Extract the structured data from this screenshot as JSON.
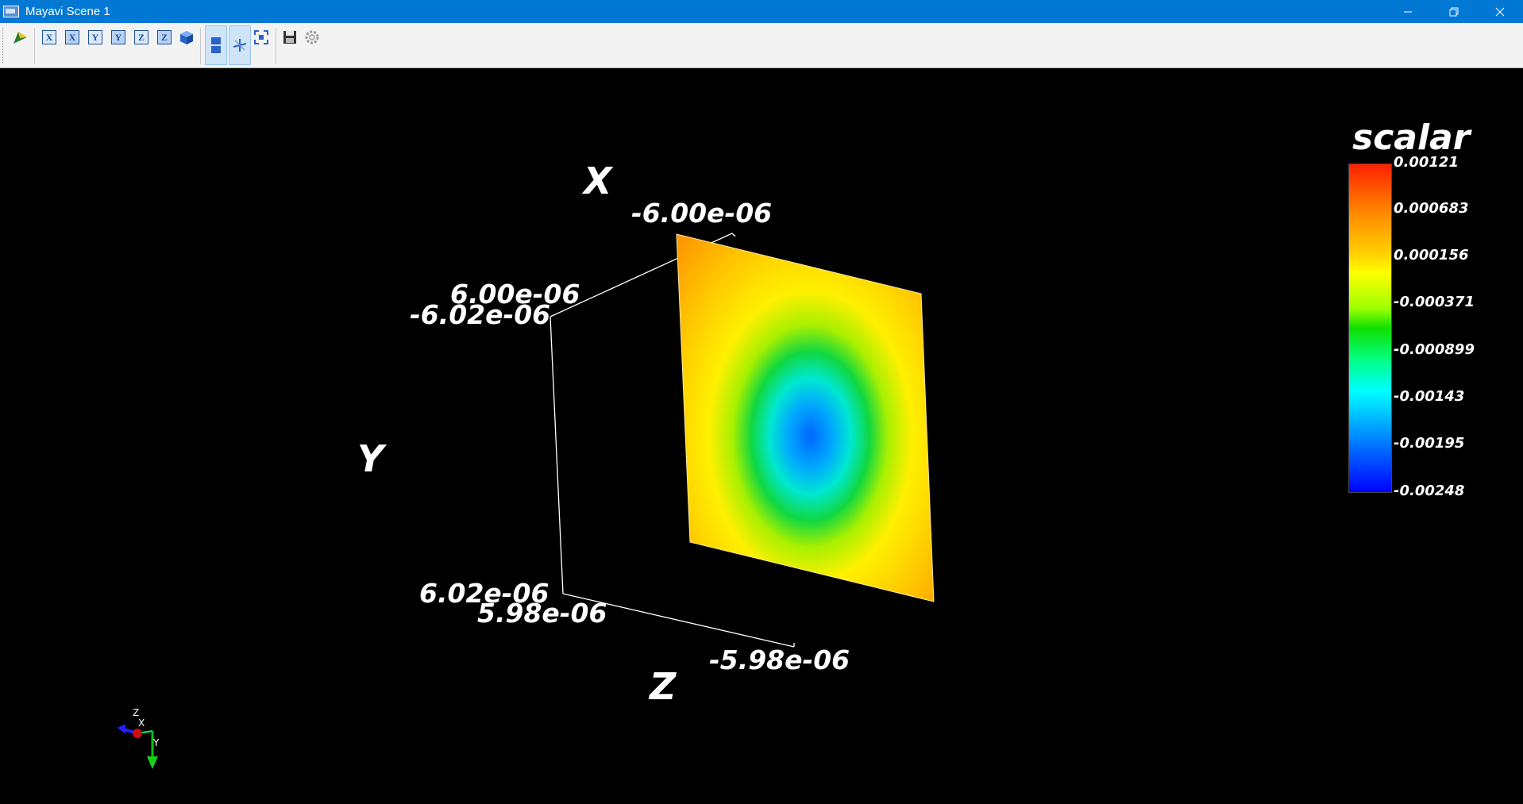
{
  "window": {
    "title": "Mayavi Scene 1",
    "controls": [
      "minimize",
      "restore",
      "close"
    ]
  },
  "toolbar": {
    "buttons": [
      {
        "name": "pipeline-icon"
      },
      {
        "name": "view-x-plus",
        "glyph": "X"
      },
      {
        "name": "view-x-minus",
        "glyph": "X"
      },
      {
        "name": "view-y-plus",
        "glyph": "Y"
      },
      {
        "name": "view-y-minus",
        "glyph": "Y"
      },
      {
        "name": "view-z-plus",
        "glyph": "Z"
      },
      {
        "name": "view-z-minus",
        "glyph": "Z"
      },
      {
        "name": "isometric-view"
      },
      {
        "name": "toggle-parallel-projection"
      },
      {
        "name": "toggle-axes"
      },
      {
        "name": "full-screen"
      },
      {
        "name": "save-scene"
      },
      {
        "name": "configure-scene"
      }
    ]
  },
  "scene": {
    "axis_titles": {
      "x": "X",
      "y": "Y",
      "z": "Z"
    },
    "x_ticks": {
      "top": "-6.00e-06",
      "left": "6.00e-06"
    },
    "y_ticks": {
      "top": "-6.02e-06",
      "bottom": "6.02e-06"
    },
    "z_ticks": {
      "near": "5.98e-06",
      "far": "-5.98e-06"
    },
    "colorbar": {
      "title": "scalar",
      "ticks": [
        "0.00121",
        "0.000683",
        "0.000156",
        "-0.000371",
        "-0.000899",
        "-0.00143",
        "-0.00195",
        "-0.00248"
      ],
      "colors": [
        "#ff2000",
        "#ffff00",
        "#10e000",
        "#00ffff",
        "#0000ff"
      ]
    },
    "orientation_axes": {
      "x": "X",
      "y": "Y",
      "z": "Z"
    }
  },
  "colors": {
    "titlebar": "#0078d4",
    "toolbar": "#f3f3f3",
    "background": "#000000"
  }
}
